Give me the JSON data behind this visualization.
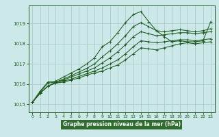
{
  "title": "Graphe pression niveau de la mer (hPa)",
  "bg_color": "#cce8e8",
  "grid_color": "#aacccc",
  "line_color": "#1a5c1a",
  "label_bg": "#2d6e2d",
  "label_fg": "#ffffff",
  "xlim": [
    -0.5,
    23.5
  ],
  "ylim": [
    1014.6,
    1019.9
  ],
  "yticks": [
    1015,
    1016,
    1017,
    1018,
    1019
  ],
  "xticks": [
    0,
    1,
    2,
    3,
    4,
    5,
    6,
    7,
    8,
    9,
    10,
    11,
    12,
    13,
    14,
    15,
    16,
    17,
    18,
    19,
    20,
    21,
    22,
    23
  ],
  "series": [
    [
      1015.1,
      1015.55,
      1015.9,
      1016.05,
      1016.1,
      1016.2,
      1016.3,
      1016.45,
      1016.55,
      1016.65,
      1016.8,
      1016.95,
      1017.2,
      1017.5,
      1017.8,
      1017.75,
      1017.7,
      1017.8,
      1017.9,
      1018.0,
      1018.05,
      1018.0,
      1018.05,
      1018.1
    ],
    [
      1015.1,
      1015.55,
      1015.9,
      1016.05,
      1016.15,
      1016.25,
      1016.38,
      1016.52,
      1016.65,
      1016.8,
      1017.0,
      1017.2,
      1017.5,
      1017.85,
      1018.15,
      1018.1,
      1018.05,
      1018.1,
      1018.15,
      1018.2,
      1018.2,
      1018.15,
      1018.2,
      1018.25
    ],
    [
      1015.1,
      1015.55,
      1015.9,
      1016.1,
      1016.2,
      1016.35,
      1016.5,
      1016.65,
      1016.8,
      1017.05,
      1017.3,
      1017.6,
      1017.95,
      1018.35,
      1018.6,
      1018.5,
      1018.4,
      1018.45,
      1018.5,
      1018.55,
      1018.55,
      1018.5,
      1018.55,
      1018.6
    ],
    [
      1015.1,
      1015.6,
      1016.05,
      1016.1,
      1016.25,
      1016.42,
      1016.6,
      1016.78,
      1017.0,
      1017.35,
      1017.65,
      1018.0,
      1018.4,
      1018.85,
      1019.05,
      1018.85,
      1018.65,
      1018.6,
      1018.65,
      1018.7,
      1018.65,
      1018.6,
      1018.65,
      1018.75
    ],
    [
      1015.1,
      1015.65,
      1016.1,
      1016.15,
      1016.35,
      1016.55,
      1016.75,
      1017.0,
      1017.3,
      1017.85,
      1018.1,
      1018.55,
      1019.05,
      1019.45,
      1019.6,
      1019.1,
      1018.65,
      1018.35,
      1018.1,
      1018.15,
      1018.1,
      1018.1,
      1018.15,
      1019.1
    ]
  ]
}
